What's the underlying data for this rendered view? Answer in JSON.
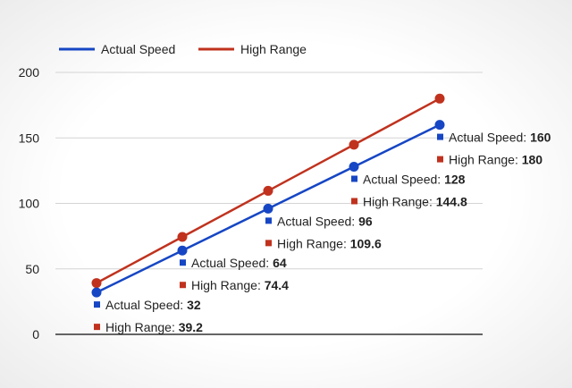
{
  "chart_data": {
    "type": "line",
    "title": "",
    "xlabel": "",
    "ylabel": "",
    "ylim": [
      0,
      200
    ],
    "yticks": [
      0,
      50,
      100,
      150,
      200
    ],
    "grid": true,
    "legend_position": "top-left",
    "x": [
      1,
      2,
      3,
      4,
      5
    ],
    "series": [
      {
        "name": "Actual Speed",
        "color": "#1646c4",
        "values": [
          32,
          64,
          96,
          128,
          160
        ]
      },
      {
        "name": "High Range",
        "color": "#c0321e",
        "values": [
          39.2,
          74.4,
          109.6,
          144.8,
          180
        ]
      }
    ],
    "data_labels": [
      {
        "point": 0,
        "actual": "32",
        "high": "39.2"
      },
      {
        "point": 1,
        "actual": "64",
        "high": "74.4"
      },
      {
        "point": 2,
        "actual": "96",
        "high": "109.6"
      },
      {
        "point": 3,
        "actual": "128",
        "high": "144.8"
      },
      {
        "point": 4,
        "actual": "160",
        "high": "180"
      }
    ]
  }
}
